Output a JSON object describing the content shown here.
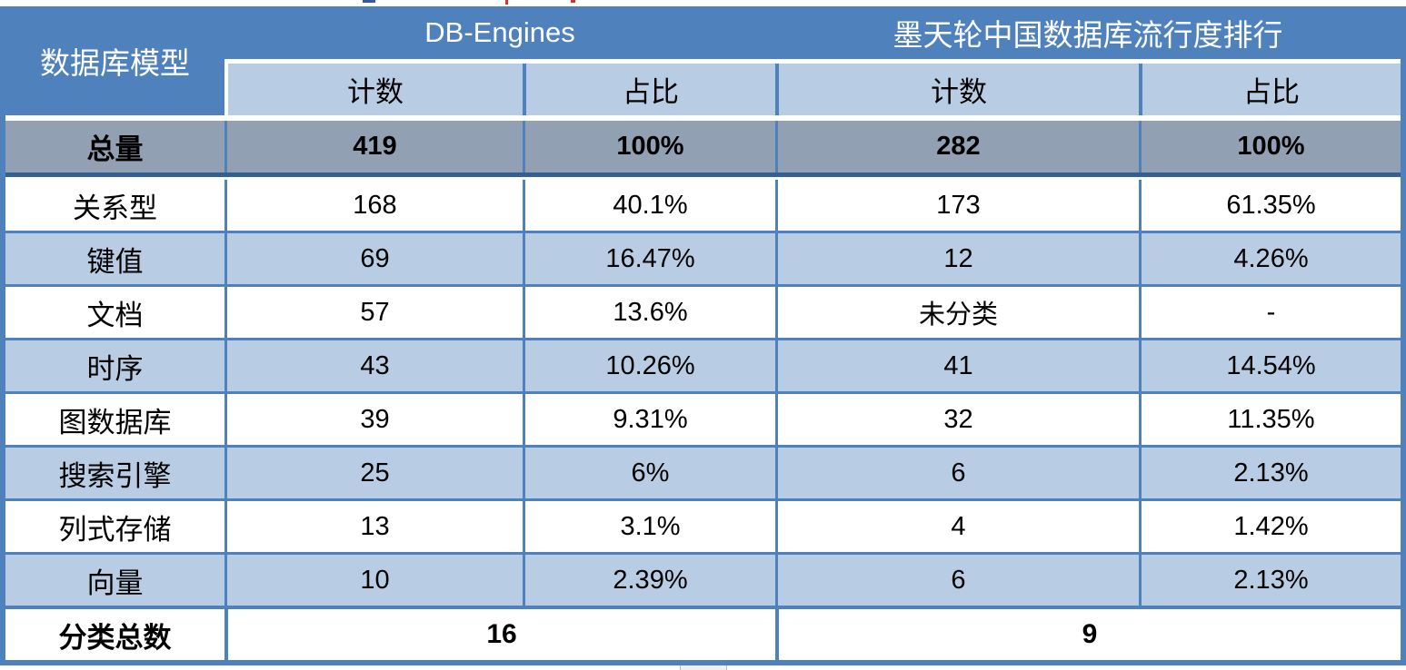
{
  "header": {
    "corner": "数据库模型",
    "groups": [
      {
        "label": "DB-Engines"
      },
      {
        "label": "墨天轮中国数据库流行度排行"
      }
    ],
    "subcols": [
      "计数",
      "占比",
      "计数",
      "占比"
    ]
  },
  "total_row": {
    "label": "总量",
    "cells": [
      "419",
      "100%",
      "282",
      "100%"
    ]
  },
  "rows": [
    {
      "label": "关系型",
      "cells": [
        "168",
        "40.1%",
        "173",
        "61.35%"
      ]
    },
    {
      "label": "键值",
      "cells": [
        "69",
        "16.47%",
        "12",
        "4.26%"
      ]
    },
    {
      "label": "文档",
      "cells": [
        "57",
        "13.6%",
        "未分类",
        "-"
      ]
    },
    {
      "label": "时序",
      "cells": [
        "43",
        "10.26%",
        "41",
        "14.54%"
      ]
    },
    {
      "label": "图数据库",
      "cells": [
        "39",
        "9.31%",
        "32",
        "11.35%"
      ]
    },
    {
      "label": "搜索引擎",
      "cells": [
        "25",
        "6%",
        "6",
        "2.13%"
      ]
    },
    {
      "label": "列式存储",
      "cells": [
        "13",
        "3.1%",
        "4",
        "1.42%"
      ]
    },
    {
      "label": "向量",
      "cells": [
        "10",
        "2.39%",
        "6",
        "2.13%"
      ]
    }
  ],
  "footer": {
    "label": "分类总数",
    "db_engines_total": "16",
    "mtl_total": "9"
  },
  "colors": {
    "header_blue": "#4F81BD",
    "band_light_blue": "#B8CCE4",
    "total_row_gray": "#91A0B3",
    "border_blue": "#4F81BD",
    "total_row_border": "#34608F",
    "text_light": "#FFFFFF",
    "text_dark": "#000000"
  },
  "chart_data": {
    "type": "table",
    "title": "",
    "column_groups": [
      "DB-Engines",
      "墨天轮中国数据库流行度排行"
    ],
    "columns": [
      "数据库模型",
      "DB-Engines 计数",
      "DB-Engines 占比",
      "墨天轮中国数据库流行度排行 计数",
      "墨天轮中国数据库流行度排行 占比"
    ],
    "rows": [
      [
        "总量",
        "419",
        "100%",
        "282",
        "100%"
      ],
      [
        "关系型",
        "168",
        "40.1%",
        "173",
        "61.35%"
      ],
      [
        "键值",
        "69",
        "16.47%",
        "12",
        "4.26%"
      ],
      [
        "文档",
        "57",
        "13.6%",
        "未分类",
        "-"
      ],
      [
        "时序",
        "43",
        "10.26%",
        "41",
        "14.54%"
      ],
      [
        "图数据库",
        "39",
        "9.31%",
        "32",
        "11.35%"
      ],
      [
        "搜索引擎",
        "25",
        "6%",
        "6",
        "2.13%"
      ],
      [
        "列式存储",
        "13",
        "3.1%",
        "4",
        "1.42%"
      ],
      [
        "向量",
        "10",
        "2.39%",
        "6",
        "2.13%"
      ],
      [
        "分类总数",
        "16",
        "",
        "9",
        ""
      ]
    ]
  }
}
